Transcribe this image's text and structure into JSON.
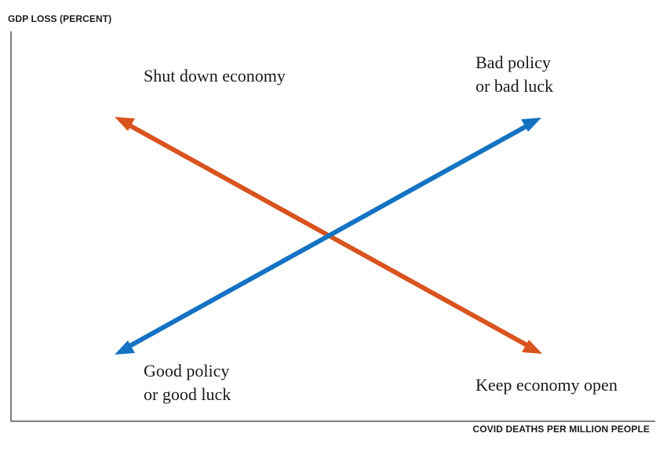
{
  "axes": {
    "y_label": "GDP LOSS (PERCENT)",
    "x_label": "COVID DEATHS PER MILLION PEOPLE"
  },
  "quadrants": {
    "top_left": [
      "Shut down economy"
    ],
    "top_right": [
      "Bad policy",
      "or bad luck"
    ],
    "bottom_left": [
      "Good policy",
      "or good luck"
    ],
    "bottom_right": [
      "Keep economy open"
    ]
  },
  "colors": {
    "orange_arrow": "#d9531e",
    "blue_arrow": "#1473c2",
    "axis": "#333333",
    "text": "#1a1a1a"
  }
}
